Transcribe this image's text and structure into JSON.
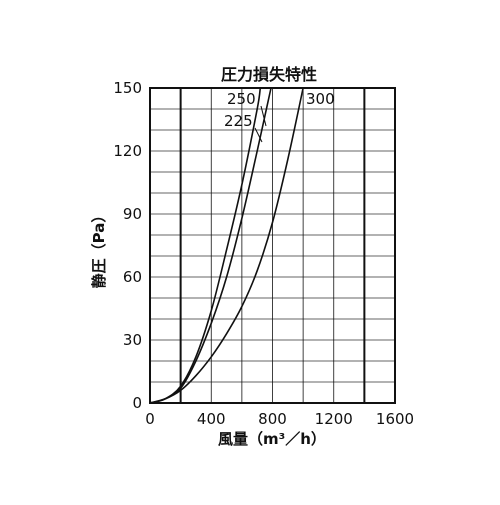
{
  "chart_data": {
    "type": "line",
    "title": "圧力損失特性",
    "xlabel": "風量（m³／h）",
    "ylabel": "静圧（Pa）",
    "xlim": [
      0,
      1600
    ],
    "ylim": [
      0,
      150
    ],
    "xticks": [
      0,
      400,
      800,
      1200,
      1600
    ],
    "yticks": [
      0,
      30,
      60,
      90,
      120,
      150
    ],
    "x_grid_step": 200,
    "y_grid_step": 10,
    "grid": true,
    "bold_vertical_lines": [
      200,
      1400
    ],
    "series": [
      {
        "name": "225",
        "x": [
          0,
          100,
          200,
          300,
          400,
          500,
          600,
          700,
          720
        ],
        "y": [
          0,
          2,
          8,
          22,
          44,
          73,
          104,
          140,
          150
        ]
      },
      {
        "name": "250",
        "x": [
          0,
          100,
          200,
          300,
          400,
          500,
          600,
          700,
          790
        ],
        "y": [
          0,
          2,
          7,
          20,
          38,
          60,
          88,
          120,
          150
        ]
      },
      {
        "name": "300",
        "x": [
          0,
          100,
          200,
          300,
          400,
          500,
          600,
          700,
          800,
          900,
          1000
        ],
        "y": [
          0,
          2,
          6,
          13,
          22,
          33,
          46,
          63,
          86,
          116,
          150
        ]
      }
    ]
  }
}
